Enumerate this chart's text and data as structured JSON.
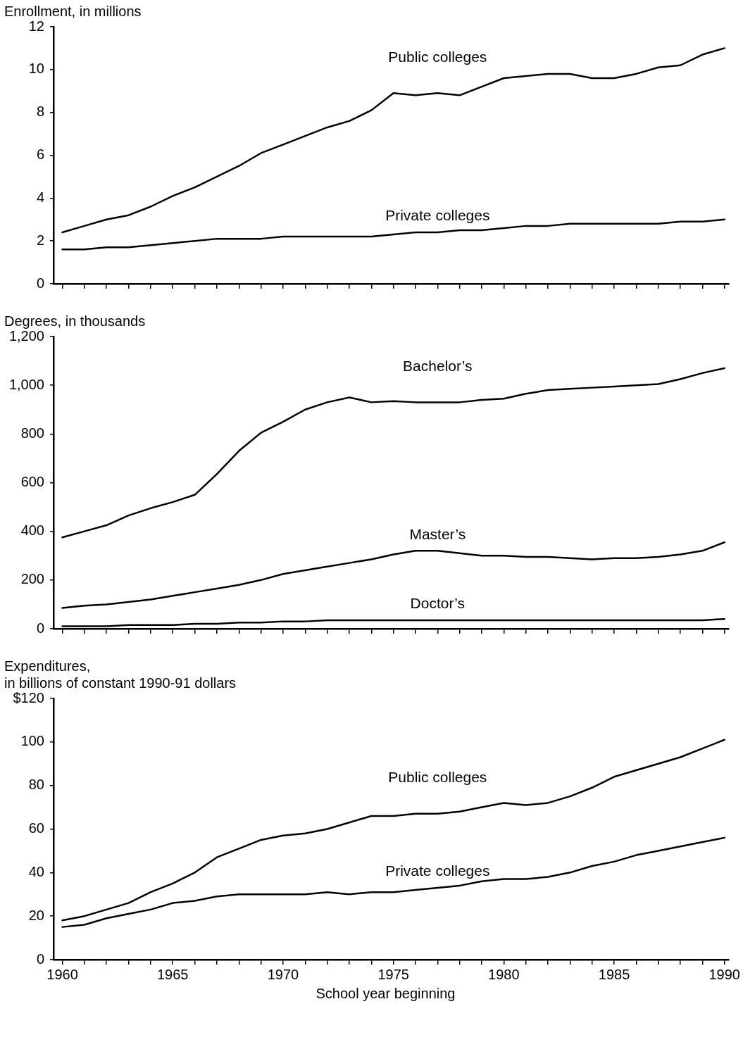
{
  "chart_data": [
    {
      "type": "line",
      "ylabel": "Enrollment, in millions",
      "x": [
        1960,
        1961,
        1962,
        1963,
        1964,
        1965,
        1966,
        1967,
        1968,
        1969,
        1970,
        1971,
        1972,
        1973,
        1974,
        1975,
        1976,
        1977,
        1978,
        1979,
        1980,
        1981,
        1982,
        1983,
        1984,
        1985,
        1986,
        1987,
        1988,
        1989,
        1990
      ],
      "series": [
        {
          "name": "Public colleges",
          "color": "#000000",
          "values": [
            2.4,
            2.7,
            3.0,
            3.2,
            3.6,
            4.1,
            4.5,
            5.0,
            5.5,
            6.1,
            6.5,
            6.9,
            7.3,
            7.6,
            8.1,
            8.9,
            8.8,
            8.9,
            8.8,
            9.2,
            9.6,
            9.7,
            9.8,
            9.8,
            9.6,
            9.6,
            9.8,
            10.1,
            10.2,
            10.7,
            11.0
          ]
        },
        {
          "name": "Private colleges",
          "color": "#000000",
          "values": [
            1.6,
            1.6,
            1.7,
            1.7,
            1.8,
            1.9,
            2.0,
            2.1,
            2.1,
            2.1,
            2.2,
            2.2,
            2.2,
            2.2,
            2.2,
            2.3,
            2.4,
            2.4,
            2.5,
            2.5,
            2.6,
            2.7,
            2.7,
            2.8,
            2.8,
            2.8,
            2.8,
            2.8,
            2.9,
            2.9,
            3.0
          ]
        }
      ],
      "xlim": [
        1959.6,
        1990.2
      ],
      "ylim": [
        0,
        12
      ],
      "yticks": [
        0,
        2,
        4,
        6,
        8,
        10,
        12
      ],
      "xticks": [
        1960,
        {
          "value": 1961,
          "label": null
        },
        {
          "value": 1962,
          "label": null
        },
        {
          "value": 1963,
          "label": null
        },
        {
          "value": 1964,
          "label": null
        },
        1965,
        {
          "value": 1966,
          "label": null
        },
        {
          "value": 1967,
          "label": null
        },
        {
          "value": 1968,
          "label": null
        },
        {
          "value": 1969,
          "label": null
        },
        1970,
        {
          "value": 1971,
          "label": null
        },
        {
          "value": 1972,
          "label": null
        },
        {
          "value": 1973,
          "label": null
        },
        {
          "value": 1974,
          "label": null
        },
        1975,
        {
          "value": 1976,
          "label": null
        },
        {
          "value": 1977,
          "label": null
        },
        {
          "value": 1978,
          "label": null
        },
        {
          "value": 1979,
          "label": null
        },
        1980,
        {
          "value": 1981,
          "label": null
        },
        {
          "value": 1982,
          "label": null
        },
        {
          "value": 1983,
          "label": null
        },
        {
          "value": 1984,
          "label": null
        },
        1985,
        {
          "value": 1986,
          "label": null
        },
        {
          "value": 1987,
          "label": null
        },
        {
          "value": 1988,
          "label": null
        },
        {
          "value": 1989,
          "label": null
        },
        1990
      ],
      "tick_labels": "y",
      "line_style": "solid",
      "legend": false,
      "grid": false
    },
    {
      "type": "line",
      "ylabel": "Degrees, in thousands",
      "x": [
        1960,
        1961,
        1962,
        1963,
        1964,
        1965,
        1966,
        1967,
        1968,
        1969,
        1970,
        1971,
        1972,
        1973,
        1974,
        1975,
        1976,
        1977,
        1978,
        1979,
        1980,
        1981,
        1982,
        1983,
        1984,
        1985,
        1986,
        1987,
        1988,
        1989,
        1990
      ],
      "series": [
        {
          "name": "Bachelor’s",
          "color": "#000000",
          "values": [
            375,
            400,
            425,
            465,
            495,
            520,
            550,
            635,
            730,
            805,
            850,
            900,
            930,
            950,
            930,
            935,
            930,
            930,
            930,
            940,
            945,
            965,
            980,
            985,
            990,
            995,
            1000,
            1005,
            1025,
            1050,
            1070
          ]
        },
        {
          "name": "Master’s",
          "color": "#000000",
          "values": [
            85,
            95,
            100,
            110,
            120,
            135,
            150,
            165,
            180,
            200,
            225,
            240,
            255,
            270,
            285,
            305,
            320,
            320,
            310,
            300,
            300,
            295,
            295,
            290,
            285,
            290,
            290,
            295,
            305,
            320,
            355
          ]
        },
        {
          "name": "Doctor’s",
          "color": "#000000",
          "values": [
            10,
            10,
            10,
            15,
            15,
            15,
            20,
            20,
            25,
            25,
            30,
            30,
            35,
            35,
            35,
            35,
            35,
            35,
            35,
            35,
            35,
            35,
            35,
            35,
            35,
            35,
            35,
            35,
            35,
            35,
            40
          ]
        }
      ],
      "xlim": [
        1959.6,
        1990.2
      ],
      "ylim": [
        0,
        1200
      ],
      "yticks": [
        0,
        200,
        400,
        600,
        800,
        {
          "value": 1000,
          "label": "1,000"
        },
        {
          "value": 1200,
          "label": "1,200"
        }
      ],
      "xticks": [
        1960,
        {
          "value": 1961,
          "label": null
        },
        {
          "value": 1962,
          "label": null
        },
        {
          "value": 1963,
          "label": null
        },
        {
          "value": 1964,
          "label": null
        },
        1965,
        {
          "value": 1966,
          "label": null
        },
        {
          "value": 1967,
          "label": null
        },
        {
          "value": 1968,
          "label": null
        },
        {
          "value": 1969,
          "label": null
        },
        1970,
        {
          "value": 1971,
          "label": null
        },
        {
          "value": 1972,
          "label": null
        },
        {
          "value": 1973,
          "label": null
        },
        {
          "value": 1974,
          "label": null
        },
        1975,
        {
          "value": 1976,
          "label": null
        },
        {
          "value": 1977,
          "label": null
        },
        {
          "value": 1978,
          "label": null
        },
        {
          "value": 1979,
          "label": null
        },
        1980,
        {
          "value": 1981,
          "label": null
        },
        {
          "value": 1982,
          "label": null
        },
        {
          "value": 1983,
          "label": null
        },
        {
          "value": 1984,
          "label": null
        },
        1985,
        {
          "value": 1986,
          "label": null
        },
        {
          "value": 1987,
          "label": null
        },
        {
          "value": 1988,
          "label": null
        },
        {
          "value": 1989,
          "label": null
        },
        1990
      ],
      "tick_labels": "y",
      "line_style": "solid",
      "legend": false,
      "grid": false
    },
    {
      "type": "line",
      "ylabel": "Expenditures,\nin billions of constant 1990-91 dollars",
      "xlabel": "School year beginning",
      "x": [
        1960,
        1961,
        1962,
        1963,
        1964,
        1965,
        1966,
        1967,
        1968,
        1969,
        1970,
        1971,
        1972,
        1973,
        1974,
        1975,
        1976,
        1977,
        1978,
        1979,
        1980,
        1981,
        1982,
        1983,
        1984,
        1985,
        1986,
        1987,
        1988,
        1989,
        1990
      ],
      "series": [
        {
          "name": "Public colleges",
          "color": "#000000",
          "values": [
            18,
            20,
            23,
            26,
            31,
            35,
            40,
            47,
            51,
            55,
            57,
            58,
            60,
            63,
            66,
            66,
            67,
            67,
            68,
            70,
            72,
            71,
            72,
            75,
            79,
            84,
            87,
            90,
            93,
            97,
            101
          ]
        },
        {
          "name": "Private colleges",
          "color": "#000000",
          "values": [
            15,
            16,
            19,
            21,
            23,
            26,
            27,
            29,
            30,
            30,
            30,
            30,
            31,
            30,
            31,
            31,
            32,
            33,
            34,
            36,
            37,
            37,
            38,
            40,
            43,
            45,
            48,
            50,
            52,
            54,
            56
          ]
        }
      ],
      "xlim": [
        1959.6,
        1990.2
      ],
      "ylim": [
        0,
        120
      ],
      "yticks": [
        0,
        20,
        40,
        60,
        80,
        100,
        {
          "value": 120,
          "label": "$120"
        }
      ],
      "xticks": [
        1960,
        {
          "value": 1961,
          "label": null
        },
        {
          "value": 1962,
          "label": null
        },
        {
          "value": 1963,
          "label": null
        },
        {
          "value": 1964,
          "label": null
        },
        1965,
        {
          "value": 1966,
          "label": null
        },
        {
          "value": 1967,
          "label": null
        },
        {
          "value": 1968,
          "label": null
        },
        {
          "value": 1969,
          "label": null
        },
        1970,
        {
          "value": 1971,
          "label": null
        },
        {
          "value": 1972,
          "label": null
        },
        {
          "value": 1973,
          "label": null
        },
        {
          "value": 1974,
          "label": null
        },
        1975,
        {
          "value": 1976,
          "label": null
        },
        {
          "value": 1977,
          "label": null
        },
        {
          "value": 1978,
          "label": null
        },
        {
          "value": 1979,
          "label": null
        },
        1980,
        {
          "value": 1981,
          "label": null
        },
        {
          "value": 1982,
          "label": null
        },
        {
          "value": 1983,
          "label": null
        },
        {
          "value": 1984,
          "label": null
        },
        1985,
        {
          "value": 1986,
          "label": null
        },
        {
          "value": 1987,
          "label": null
        },
        {
          "value": 1988,
          "label": null
        },
        {
          "value": 1989,
          "label": null
        },
        1990
      ],
      "line_style": "solid",
      "legend": false,
      "grid": false
    }
  ]
}
